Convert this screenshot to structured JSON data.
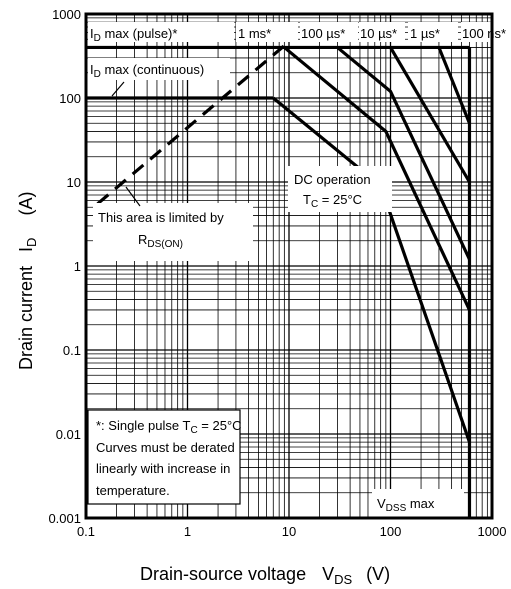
{
  "chart_data": {
    "type": "line",
    "title": "",
    "xlabel": {
      "main": "Drain-source voltage",
      "sym": "V",
      "sub": "DS",
      "unit": "(V)"
    },
    "ylabel": {
      "main": "Drain current",
      "sym": "I",
      "sub": "D",
      "unit": "(A)"
    },
    "x_scale": "log",
    "y_scale": "log",
    "xlim": [
      0.1,
      1000
    ],
    "ylim": [
      0.001,
      1000
    ],
    "x_ticks": [
      "0.1",
      "1",
      "10",
      "100",
      "1000"
    ],
    "y_ticks": [
      "0.001",
      "0.01",
      "0.1",
      "1",
      "10",
      "100",
      "1000"
    ],
    "grid": true,
    "series": [
      {
        "name": "1 ms*",
        "values": [
          [
            9,
            400
          ],
          [
            90,
            40
          ],
          [
            600,
            0.3
          ]
        ]
      },
      {
        "name": "100 µs*",
        "values": [
          [
            30,
            400
          ],
          [
            100,
            120
          ],
          [
            600,
            1.2
          ]
        ]
      },
      {
        "name": "10 µs*",
        "values": [
          [
            100,
            400
          ],
          [
            600,
            10
          ]
        ]
      },
      {
        "name": "1 µs*",
        "values": [
          [
            300,
            400
          ],
          [
            600,
            50
          ]
        ]
      },
      {
        "name": "100 ns*",
        "values": [
          [
            600,
            400
          ]
        ]
      },
      {
        "name": "DC operation",
        "values": [
          [
            7,
            100
          ],
          [
            80,
            9
          ],
          [
            600,
            0.008
          ]
        ]
      },
      {
        "name": "ID max (pulse)*",
        "values": [
          [
            0.1,
            400
          ],
          [
            600,
            400
          ]
        ]
      },
      {
        "name": "ID max (continuous)",
        "values": [
          [
            0.1,
            100
          ],
          [
            7,
            100
          ]
        ]
      },
      {
        "name": "RDS(ON) limit",
        "values": [
          [
            0.13,
            5.5
          ],
          [
            9,
            420
          ]
        ]
      },
      {
        "name": "VDSS max",
        "values": [
          [
            600,
            0.001
          ],
          [
            600,
            400
          ]
        ]
      }
    ],
    "annotations": {
      "id_pulse": {
        "main": "I",
        "sub": "D",
        "rest": " max (pulse)*"
      },
      "t1ms": "1 ms*",
      "t100us": "100 µs*",
      "t10us": "10 µs*",
      "t1us": "1 µs*",
      "t100ns": "100 ns*",
      "id_cont": {
        "main": "I",
        "sub": "D",
        "rest": " max (continuous)"
      },
      "dc1": "DC operation",
      "dc2": {
        "main": "T",
        "sub": "C",
        "rest": " = 25°C"
      },
      "rds1": "This area is limited by",
      "rds2": {
        "main": "R",
        "sub": "DS(ON)"
      },
      "vdss": {
        "main": "V",
        "sub": "DSS",
        "rest": " max"
      },
      "note": [
        "*: Single pulse    T",
        "Curves must be derated",
        "linearly with increase in",
        "temperature."
      ],
      "note_tc": {
        "sub": "C",
        "rest": " = 25°C"
      }
    }
  }
}
